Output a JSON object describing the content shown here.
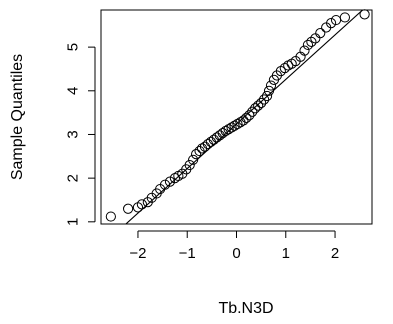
{
  "chart_data": {
    "type": "scatter",
    "subtype": "qq-plot",
    "xlabel": "Tb.N3D",
    "ylabel": "Sample Quantiles",
    "xlim": [
      -2.75,
      2.75
    ],
    "ylim": [
      0.95,
      5.85
    ],
    "x_ticks": [
      -2,
      -1,
      0,
      1,
      2
    ],
    "x_tick_labels": [
      "−2",
      "−1",
      "0",
      "1",
      "2"
    ],
    "y_ticks": [
      1,
      2,
      3,
      4,
      5
    ],
    "y_tick_labels": [
      "1",
      "2",
      "3",
      "4",
      "5"
    ],
    "reference_line": {
      "intercept": 3.24,
      "slope": 1.02
    },
    "grid": false,
    "marker": "open-circle",
    "points": [
      [
        -2.55,
        1.12
      ],
      [
        -2.2,
        1.3
      ],
      [
        -2.0,
        1.33
      ],
      [
        -1.92,
        1.4
      ],
      [
        -1.8,
        1.45
      ],
      [
        -1.72,
        1.55
      ],
      [
        -1.62,
        1.65
      ],
      [
        -1.55,
        1.75
      ],
      [
        -1.45,
        1.85
      ],
      [
        -1.35,
        1.92
      ],
      [
        -1.25,
        2.0
      ],
      [
        -1.18,
        2.05
      ],
      [
        -1.1,
        2.1
      ],
      [
        -1.02,
        2.2
      ],
      [
        -0.95,
        2.3
      ],
      [
        -0.88,
        2.42
      ],
      [
        -0.82,
        2.55
      ],
      [
        -0.75,
        2.62
      ],
      [
        -0.7,
        2.68
      ],
      [
        -0.64,
        2.72
      ],
      [
        -0.58,
        2.78
      ],
      [
        -0.52,
        2.83
      ],
      [
        -0.46,
        2.88
      ],
      [
        -0.4,
        2.93
      ],
      [
        -0.34,
        2.98
      ],
      [
        -0.28,
        3.03
      ],
      [
        -0.22,
        3.08
      ],
      [
        -0.16,
        3.12
      ],
      [
        -0.1,
        3.16
      ],
      [
        -0.04,
        3.2
      ],
      [
        0.02,
        3.24
      ],
      [
        0.08,
        3.28
      ],
      [
        0.14,
        3.32
      ],
      [
        0.2,
        3.38
      ],
      [
        0.26,
        3.44
      ],
      [
        0.32,
        3.52
      ],
      [
        0.38,
        3.6
      ],
      [
        0.44,
        3.66
      ],
      [
        0.5,
        3.72
      ],
      [
        0.56,
        3.8
      ],
      [
        0.62,
        3.88
      ],
      [
        0.66,
        4.0
      ],
      [
        0.7,
        4.12
      ],
      [
        0.76,
        4.25
      ],
      [
        0.82,
        4.35
      ],
      [
        0.9,
        4.45
      ],
      [
        0.98,
        4.52
      ],
      [
        1.05,
        4.58
      ],
      [
        1.12,
        4.62
      ],
      [
        1.2,
        4.68
      ],
      [
        1.3,
        4.78
      ],
      [
        1.38,
        4.92
      ],
      [
        1.45,
        5.05
      ],
      [
        1.52,
        5.12
      ],
      [
        1.6,
        5.2
      ],
      [
        1.7,
        5.32
      ],
      [
        1.82,
        5.45
      ],
      [
        1.92,
        5.55
      ],
      [
        2.02,
        5.62
      ],
      [
        2.2,
        5.68
      ],
      [
        2.6,
        5.75
      ]
    ]
  }
}
